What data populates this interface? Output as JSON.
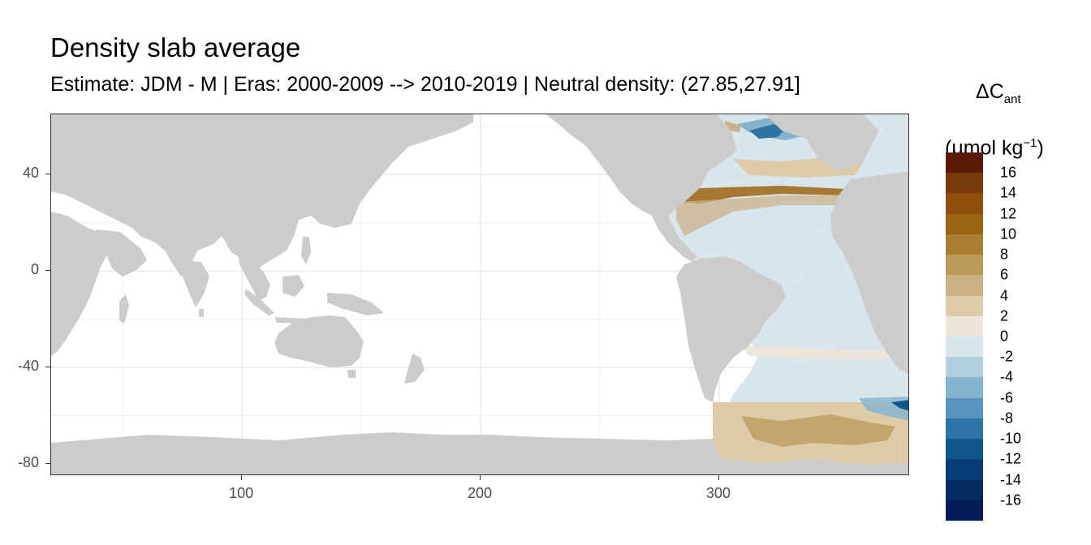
{
  "title": "Density slab average",
  "subtitle": "Estimate: JDM - M | Eras: 2000-2009 --> 2010-2019 | Neutral density: (27.85,27.91]",
  "legend": {
    "title_symbol": "ΔC",
    "title_sub": "ant",
    "unit_prefix": "(μmol kg",
    "unit_sup": "−1",
    "unit_suffix": ")",
    "bins": [
      {
        "label": "16",
        "color": "#5c1a06"
      },
      {
        "label": "14",
        "color": "#7a3b0a"
      },
      {
        "label": "12",
        "color": "#8f4f0b"
      },
      {
        "label": "10",
        "color": "#9b6411"
      },
      {
        "label": "8",
        "color": "#a97d32"
      },
      {
        "label": "6",
        "color": "#b99a5a"
      },
      {
        "label": "4",
        "color": "#ccb184"
      },
      {
        "label": "2",
        "color": "#ddcbaa"
      },
      {
        "label": "0",
        "color": "#ede5da"
      },
      {
        "label": "-2",
        "color": "#d9e5ec"
      },
      {
        "label": "-4",
        "color": "#b2cfe0"
      },
      {
        "label": "-6",
        "color": "#85b3cf"
      },
      {
        "label": "-8",
        "color": "#5894bd"
      },
      {
        "label": "-10",
        "color": "#2d74a5"
      },
      {
        "label": "-12",
        "color": "#0f5689"
      },
      {
        "label": "-14",
        "color": "#073d74"
      },
      {
        "label": "-16",
        "color": "#042a64"
      }
    ],
    "bottom_color": "#021a57"
  },
  "chart_data": {
    "type": "heatmap",
    "title": "Density slab average",
    "subtitle": "Estimate: JDM - M | Eras: 2000-2009 --> 2010-2019 | Neutral density: (27.85,27.91]",
    "x_ticks": [
      100,
      200,
      300
    ],
    "y_ticks": [
      40,
      0,
      -40,
      -80
    ],
    "xlim": [
      20,
      380
    ],
    "ylim": [
      -85,
      65
    ],
    "grid": true,
    "land_color": "#cccccc",
    "variable": "ΔC ant (μmol kg−1)",
    "legend_placement": "right"
  }
}
